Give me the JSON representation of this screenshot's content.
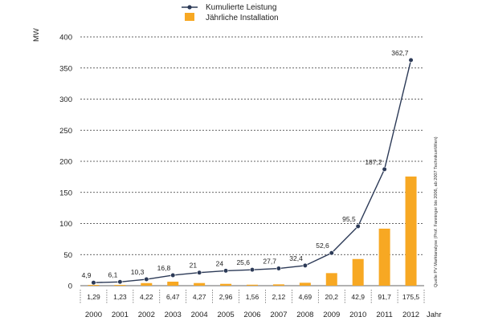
{
  "chart_data": {
    "type": "bar+line",
    "years": [
      "2000",
      "2001",
      "2002",
      "2003",
      "2004",
      "2005",
      "2006",
      "2007",
      "2008",
      "2009",
      "2010",
      "2011",
      "2012"
    ],
    "series": [
      {
        "name": "Kumulierte Leistung",
        "kind": "line",
        "values": [
          4.9,
          6.1,
          10.3,
          16.8,
          21,
          24,
          25.6,
          27.7,
          32.4,
          52.6,
          95.5,
          187.2,
          362.7
        ],
        "labels": [
          "4,9",
          "6,1",
          "10,3",
          "16,8",
          "21",
          "24",
          "25,6",
          "27,7",
          "32,4",
          "52,6",
          "95,5",
          "187,2",
          "362,7"
        ]
      },
      {
        "name": "Jährliche Installation",
        "kind": "bar",
        "values": [
          1.29,
          1.23,
          4.22,
          6.47,
          4.27,
          2.96,
          1.56,
          2.12,
          4.69,
          20.2,
          42.9,
          91.7,
          175.5
        ],
        "labels": [
          "1,29",
          "1,23",
          "4,22",
          "6,47",
          "4,27",
          "2,96",
          "1,56",
          "2,12",
          "4,69",
          "20,2",
          "42,9",
          "91,7",
          "175,5"
        ]
      }
    ],
    "ylabel": "MW",
    "xlabel": "Jahr",
    "ylim": [
      0,
      400
    ],
    "yticks": [
      0,
      50,
      100,
      150,
      200,
      250,
      300,
      350,
      400
    ],
    "source": "Quelle PV Marktanalyse (Prof. Fanninger bis 2006, ab 2007 TechnikumWien)",
    "colors": {
      "bar": "#F7A823",
      "line": "#2C3A57",
      "grid": "#333333"
    }
  }
}
